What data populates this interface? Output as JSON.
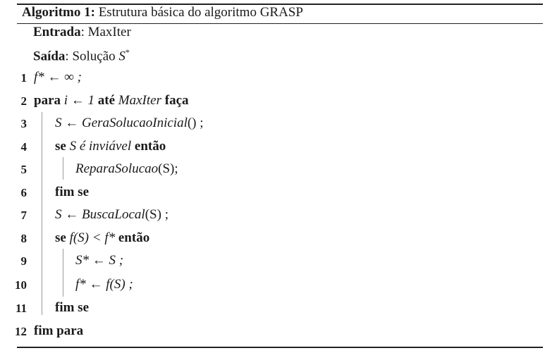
{
  "caption": {
    "label": "Algoritmo 1:",
    "title": "Estrutura básica do algoritmo GRASP"
  },
  "input": {
    "label": "Entrada",
    "sep": ":",
    "value": "MaxIter"
  },
  "output": {
    "label": "Saída",
    "sep": ":",
    "value_text": "Solução",
    "value_sym": "S",
    "value_sup": "*"
  },
  "lines": [
    {
      "num": "1",
      "code": "f* ← ∞ ;"
    },
    {
      "num": "2",
      "kw1": "para",
      "mid": "i ← 1",
      "kw2": "até",
      "var": "MaxIter",
      "kw3": "faça"
    },
    {
      "num": "3",
      "lhs": "S ←",
      "fn": "GeraSolucaoInicial",
      "rest": "() ;"
    },
    {
      "num": "4",
      "kw1": "se",
      "cond": "S é inviável",
      "kw2": "então"
    },
    {
      "num": "5",
      "fn": "ReparaSolucao",
      "rest": "(S);"
    },
    {
      "num": "6",
      "kw1": "fim se"
    },
    {
      "num": "7",
      "lhs": "S ←",
      "fn": "BuscaLocal",
      "rest": "(S) ;"
    },
    {
      "num": "8",
      "kw1": "se",
      "cond": "f(S) < f*",
      "kw2": "então"
    },
    {
      "num": "9",
      "code": "S* ← S ;"
    },
    {
      "num": "10",
      "code": "f* ← f(S) ;"
    },
    {
      "num": "11",
      "kw1": "fim se"
    },
    {
      "num": "12",
      "kw1": "fim para"
    }
  ]
}
